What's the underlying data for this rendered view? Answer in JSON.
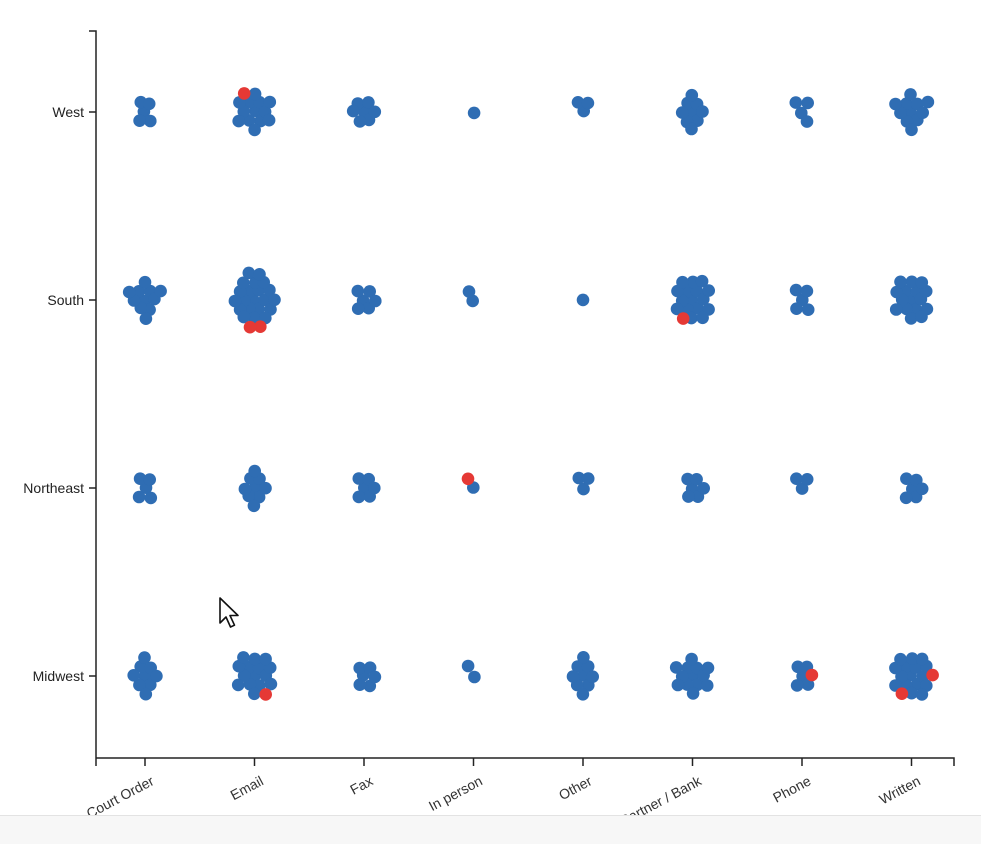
{
  "chart_data": {
    "type": "scatter",
    "subtype": "beeswarm",
    "x_categories": [
      "Court Order",
      "Email",
      "Fax",
      "In person",
      "Other",
      "Partner / Bank",
      "Phone",
      "Written"
    ],
    "y_categories": [
      "West",
      "South",
      "Northeast",
      "Midwest"
    ],
    "series": [
      {
        "name": "",
        "color": "#2f6db3",
        "counts": {
          "West": {
            "Court Order": 5,
            "Email": 13,
            "Fax": 7,
            "In person": 1,
            "Other": 3,
            "Partner / Bank": 9,
            "Phone": 4,
            "Written": 11
          },
          "South": {
            "Court Order": 11,
            "Email": 21,
            "Fax": 6,
            "In person": 2,
            "Other": 1,
            "Partner / Bank": 16,
            "Phone": 5,
            "Written": 16
          },
          "Northeast": {
            "Court Order": 5,
            "Email": 9,
            "Fax": 6,
            "In person": 1,
            "Other": 3,
            "Partner / Bank": 6,
            "Phone": 3,
            "Written": 6
          },
          "Midwest": {
            "Court Order": 9,
            "Email": 15,
            "Fax": 6,
            "In person": 2,
            "Other": 9,
            "Partner / Bank": 13,
            "Phone": 5,
            "Written": 16
          }
        }
      },
      {
        "name": "",
        "color": "#e53935",
        "counts": {
          "West": {
            "Court Order": 0,
            "Email": 1,
            "Fax": 0,
            "In person": 0,
            "Other": 0,
            "Partner / Bank": 0,
            "Phone": 0,
            "Written": 0
          },
          "South": {
            "Court Order": 0,
            "Email": 2,
            "Fax": 0,
            "In person": 0,
            "Other": 0,
            "Partner / Bank": 1,
            "Phone": 0,
            "Written": 0
          },
          "Northeast": {
            "Court Order": 0,
            "Email": 0,
            "Fax": 0,
            "In person": 1,
            "Other": 0,
            "Partner / Bank": 0,
            "Phone": 0,
            "Written": 0
          },
          "Midwest": {
            "Court Order": 0,
            "Email": 1,
            "Fax": 0,
            "In person": 0,
            "Other": 0,
            "Partner / Bank": 0,
            "Phone": 1,
            "Written": 2
          }
        }
      }
    ],
    "title": "",
    "xlabel": "",
    "ylabel": "",
    "legend": "none",
    "grid": false
  },
  "x_tick_labels": [
    "Court Order",
    "Email",
    "Fax",
    "In person",
    "Other",
    "Partner / Bank",
    "Phone",
    "Written"
  ],
  "y_tick_labels": [
    "West",
    "South",
    "Northeast",
    "Midwest"
  ],
  "icons": {
    "cursor": "arrow-cursor-icon"
  }
}
